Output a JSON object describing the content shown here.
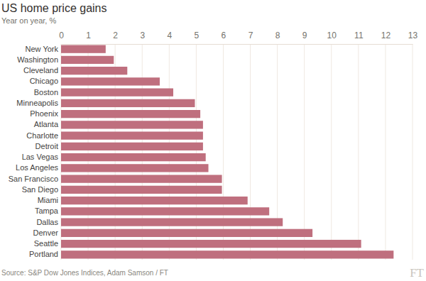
{
  "chart_data": {
    "type": "bar",
    "orientation": "horizontal",
    "title": "US home price gains",
    "subtitle": "Year on year, %",
    "source": "Source: S&P Dow Jones Indices, Adam Samson / FT",
    "credit": "FT",
    "categories": [
      "New York",
      "Washington",
      "Cleveland",
      "Chicago",
      "Boston",
      "Minneapolis",
      "Phoenix",
      "Atlanta",
      "Charlotte",
      "Detroit",
      "Las Vegas",
      "Los Angeles",
      "San Francisco",
      "San Diego",
      "Miami",
      "Tampa",
      "Dallas",
      "Denver",
      "Seattle",
      "Portland"
    ],
    "values": [
      1.65,
      1.95,
      2.45,
      3.65,
      4.15,
      4.95,
      5.15,
      5.25,
      5.25,
      5.25,
      5.35,
      5.45,
      5.95,
      5.95,
      6.9,
      7.7,
      8.2,
      9.3,
      11.1,
      12.3
    ],
    "color": "#bf6f7e",
    "xlim": [
      0,
      13
    ],
    "xticks": [
      0,
      1,
      2,
      3,
      4,
      5,
      6,
      7,
      8,
      9,
      10,
      11,
      12,
      13
    ],
    "grid": true
  }
}
